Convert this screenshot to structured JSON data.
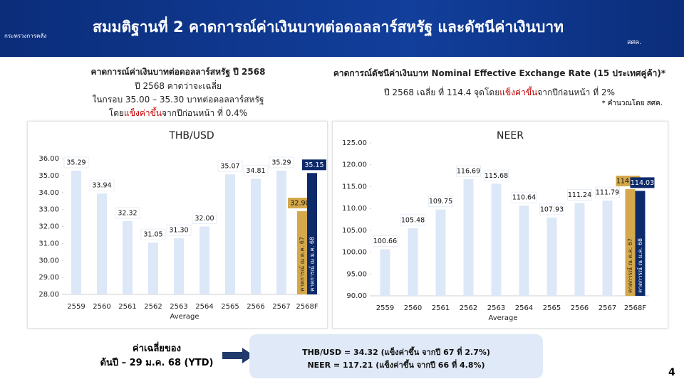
{
  "header": {
    "title": "สมมติฐานที่ 2 คาดการณ์ค่าเงินบาทต่อดอลลาร์สหรัฐ และดัชนีค่าเงินบาท",
    "ministry": "กระทรวงการคลัง",
    "agency": "สศค."
  },
  "left_text": {
    "heading": "คาดการณ์ค่าเงินบาทต่อดอลลาร์สหรัฐ ปี 2568",
    "lines": [
      [
        "ปี 2568 คาดว่าจะเฉลี่ย"
      ],
      [
        "ในกรอบ 35.00 – 35.30 บาทต่อดอลลาร์สหรัฐ"
      ],
      [
        "โดย",
        "แข็งค่าขึ้น",
        "จากปีก่อนหน้า ที่ 0.4%"
      ]
    ]
  },
  "right_text": {
    "heading": "คาดการณ์ดัชนีค่าเงินบาท Nominal Effective Exchange Rate (15 ประเทศคู่ค้า)*",
    "lines": [
      [
        "ปี 2568 เฉลี่ย ที่ 114.4 จุดโดย",
        "แข็งค่าขึ้น",
        "จากปีก่อนหน้า ที่ 2%"
      ]
    ],
    "note": "* คำนวณโดย สศค."
  },
  "summary": {
    "label_lines": [
      "ค่าเฉลี่ยของ",
      "ต้นปี – 29 ม.ค. 68 (YTD)"
    ],
    "lines": [
      "THB/USD = 34.32 (แข็งค่าขึ้น จากปี 67 ที่ 2.7%)",
      "NEER = 117.21 (แข็งค่าขึ้น จากปี 66 ที่ 4.8%)"
    ]
  },
  "page_number": "4",
  "chart_data": [
    {
      "type": "bar",
      "title": "THB/USD",
      "x_label": "Average",
      "categories": [
        "2559",
        "2560",
        "2561",
        "2562",
        "2563",
        "2564",
        "2565",
        "2566",
        "2567",
        "2568F"
      ],
      "series": [
        {
          "color": "#dce8f7",
          "values": [
            35.29,
            33.94,
            32.32,
            31.05,
            31.3,
            32,
            35.07,
            34.81,
            35.29,
            null
          ],
          "value_labels": [
            "35.29",
            "33.94",
            "32.32",
            "31.05",
            "31.30",
            "32.00",
            "35.07",
            "34.81",
            "35.29",
            null
          ]
        },
        {
          "name": "คาดการณ์ ณ ต.ค. 67",
          "color": "#d4a84b",
          "values": [
            null,
            null,
            null,
            null,
            null,
            null,
            null,
            null,
            null,
            32.9
          ],
          "value_labels": [
            null,
            null,
            null,
            null,
            null,
            null,
            null,
            null,
            null,
            "32.90"
          ]
        },
        {
          "name": "คาดการณ์ ณ ม.ค. 68",
          "color": "#0d2a6b",
          "values": [
            null,
            null,
            null,
            null,
            null,
            null,
            null,
            null,
            null,
            35.15
          ],
          "value_labels": [
            null,
            null,
            null,
            null,
            null,
            null,
            null,
            null,
            null,
            "35.15"
          ]
        }
      ],
      "ylim": [
        28,
        36
      ],
      "yticks": [
        {
          "value": 28,
          "label": "28.00"
        },
        {
          "value": 29,
          "label": "29.00"
        },
        {
          "value": 30,
          "label": "30.00"
        },
        {
          "value": 31,
          "label": "31.00"
        },
        {
          "value": 32,
          "label": "32.00"
        },
        {
          "value": 33,
          "label": "33.00"
        },
        {
          "value": 34,
          "label": "34.00"
        },
        {
          "value": 35,
          "label": "35.00"
        },
        {
          "value": 36,
          "label": "36.00"
        }
      ]
    },
    {
      "type": "bar",
      "title": "NEER",
      "x_label": "Average",
      "categories": [
        "2559",
        "2560",
        "2561",
        "2562",
        "2563",
        "2564",
        "2565",
        "2566",
        "2567",
        "2568F"
      ],
      "series": [
        {
          "color": "#dce8f7",
          "values": [
            100.66,
            105.48,
            109.75,
            116.69,
            115.68,
            110.64,
            107.93,
            111.24,
            111.79,
            null
          ]
        },
        {
          "name": "คาดการณ์ ณ ต.ค. 67",
          "color": "#d4a84b",
          "values": [
            null,
            null,
            null,
            null,
            null,
            null,
            null,
            null,
            null,
            114.41
          ]
        },
        {
          "name": "คาดการณ์ ณ ม.ค. 68",
          "color": "#0d2a6b",
          "values": [
            null,
            null,
            null,
            null,
            null,
            null,
            null,
            null,
            null,
            114.03
          ]
        }
      ],
      "ylim": [
        90,
        125
      ],
      "yticks": [
        {
          "value": 90,
          "label": "90.00"
        },
        {
          "value": 95,
          "label": "95.00"
        },
        {
          "value": 100,
          "label": "100.00"
        },
        {
          "value": 105,
          "label": "105.00"
        },
        {
          "value": 110,
          "label": "110.00"
        },
        {
          "value": 115,
          "label": "115.00"
        },
        {
          "value": 120,
          "label": "120.00"
        },
        {
          "value": 125,
          "label": "125.00"
        }
      ]
    }
  ]
}
